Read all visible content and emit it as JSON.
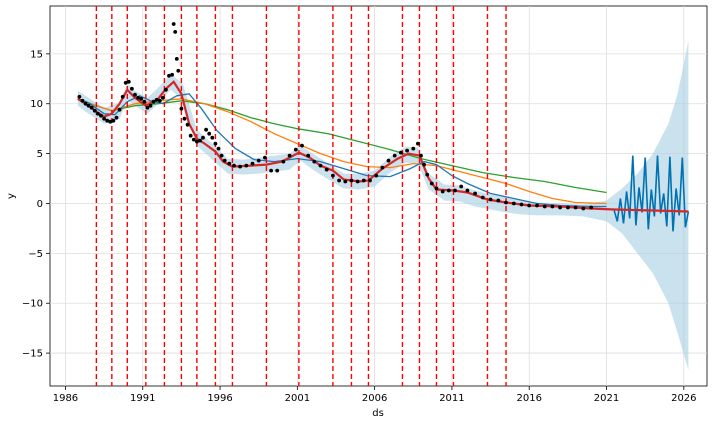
{
  "chart_data": {
    "type": "line",
    "xlabel": "ds",
    "ylabel": "y",
    "xlim": [
      1985.0,
      2027.5
    ],
    "ylim": [
      -18.3,
      19.8
    ],
    "x_ticks": [
      1986,
      1991,
      1996,
      2001,
      2006,
      2011,
      2016,
      2021,
      2026
    ],
    "x_tick_labels": [
      "1986",
      "1991",
      "1996",
      "2001",
      "2006",
      "2011",
      "2016",
      "2021",
      "2026"
    ],
    "y_ticks": [
      -15,
      -10,
      -5,
      0,
      5,
      10,
      15
    ],
    "y_tick_labels": [
      "−15",
      "−10",
      "−5",
      "0",
      "5",
      "10",
      "15"
    ],
    "grid": true,
    "colors": {
      "observed": "#000000",
      "fit": "#d62728",
      "forecast": "#0072b2",
      "uncertainty": "#a6cee3",
      "changepoint": "#ff0000",
      "blue_series": "#1f77b4",
      "orange_series": "#ff7f0e",
      "green_series": "#2ca02c"
    },
    "changepoints": [
      1988.0,
      1989.0,
      1990.0,
      1991.2,
      1992.4,
      1993.5,
      1994.5,
      1995.7,
      1996.8,
      1999.0,
      2001.1,
      2003.3,
      2004.5,
      2005.6,
      2007.8,
      2008.9,
      2010.0,
      2011.1,
      2013.3,
      2014.5
    ],
    "series": [
      {
        "name": "",
        "role": "uncertainty-upper",
        "x": [
          1986.8,
          1987.5,
          1988.5,
          1989.5,
          1990.0,
          1990.5,
          1991.3,
          1992.0,
          1992.8,
          1993.6,
          1994.5,
          1995.5,
          1996.5,
          1997.5,
          1998.5,
          1999.5,
          2000.5,
          2001.2,
          2002.0,
          2003.0,
          2004.0,
          2005.0,
          2006.0,
          2007.0,
          2008.0,
          2008.8,
          2009.5,
          2010.5,
          2011.5,
          2012.5,
          2013.5,
          2014.5,
          2015.5,
          2016.5,
          2018.0,
          2019.5,
          2021.0,
          2022.0,
          2023.0,
          2024.0,
          2025.0,
          2025.6,
          2026.3
        ],
        "values": [
          11.3,
          10.6,
          9.6,
          10.1,
          12.0,
          11.3,
          10.6,
          11.6,
          13.0,
          12.0,
          7.4,
          6.0,
          4.5,
          4.4,
          4.6,
          4.8,
          5.0,
          5.8,
          5.0,
          4.0,
          3.0,
          3.0,
          3.3,
          4.7,
          5.7,
          5.6,
          3.0,
          1.9,
          1.8,
          1.3,
          0.9,
          0.6,
          0.3,
          0.1,
          0.0,
          -0.1,
          0.3,
          1.5,
          3.0,
          5.0,
          8.0,
          11.0,
          16.3
        ]
      },
      {
        "name": "",
        "role": "uncertainty-lower",
        "x": [
          1986.8,
          1987.5,
          1988.5,
          1989.5,
          1990.0,
          1990.5,
          1991.3,
          1992.0,
          1992.8,
          1993.6,
          1994.5,
          1995.5,
          1996.5,
          1997.5,
          1998.5,
          1999.5,
          2000.5,
          2001.2,
          2002.0,
          2003.0,
          2004.0,
          2005.0,
          2006.0,
          2007.0,
          2008.0,
          2008.8,
          2009.5,
          2010.5,
          2011.5,
          2012.5,
          2013.5,
          2014.5,
          2015.5,
          2016.5,
          2018.0,
          2019.5,
          2021.0,
          2022.0,
          2023.0,
          2024.0,
          2025.0,
          2025.6,
          2026.3
        ],
        "values": [
          9.8,
          9.0,
          8.0,
          8.5,
          10.4,
          9.8,
          9.0,
          10.0,
          11.4,
          10.4,
          5.8,
          4.4,
          3.0,
          2.9,
          3.0,
          3.2,
          3.4,
          4.3,
          3.4,
          2.4,
          1.5,
          1.4,
          1.7,
          3.1,
          4.1,
          4.0,
          1.4,
          0.3,
          0.2,
          -0.3,
          -0.6,
          -0.9,
          -1.1,
          -1.2,
          -1.2,
          -1.3,
          -1.8,
          -3.0,
          -5.0,
          -7.0,
          -10.0,
          -13.0,
          -16.7
        ]
      },
      {
        "name": "",
        "role": "blue-series",
        "x": [
          1986.8,
          1987.5,
          1988.5,
          1989.2,
          1990.0,
          1990.8,
          1991.5,
          1992.3,
          1993.2,
          1994.0,
          1994.8,
          1995.8,
          1997.0,
          1998.2,
          1999.5,
          2001.0,
          2002.5,
          2004.0,
          2005.5,
          2007.0,
          2008.3,
          2009.2,
          2010.0,
          2011.0,
          2012.0,
          2013.5,
          2015.0,
          2016.5,
          2018.0,
          2020.0,
          2021.0
        ],
        "values": [
          10.5,
          10.1,
          9.0,
          8.9,
          10.2,
          10.8,
          10.3,
          10.0,
          10.8,
          11.0,
          9.5,
          7.3,
          5.5,
          4.4,
          4.2,
          4.5,
          4.2,
          3.5,
          2.8,
          2.7,
          3.5,
          4.2,
          3.9,
          2.8,
          2.0,
          1.0,
          0.5,
          0.0,
          -0.2,
          -0.3,
          -0.3
        ]
      },
      {
        "name": "",
        "role": "orange-series",
        "x": [
          1986.8,
          1988.0,
          1989.0,
          1990.5,
          1992.0,
          1993.5,
          1995.0,
          1996.5,
          1998.0,
          1999.5,
          2001.0,
          2002.5,
          2004.0,
          2005.5,
          2007.0,
          2008.5,
          2010.0,
          2011.5,
          2013.0,
          2014.5,
          2016.0,
          2017.5,
          2019.0,
          2021.0
        ],
        "values": [
          10.5,
          9.8,
          9.3,
          10.0,
          10.3,
          10.5,
          10.0,
          9.2,
          8.2,
          7.0,
          6.0,
          5.0,
          4.2,
          3.7,
          3.6,
          4.0,
          3.8,
          3.2,
          2.6,
          2.0,
          1.2,
          0.5,
          0.1,
          0.0
        ]
      },
      {
        "name": "",
        "role": "green-series",
        "x": [
          1986.8,
          1988.0,
          1989.0,
          1990.5,
          1992.0,
          1993.5,
          1995.0,
          1996.5,
          1998.0,
          1999.5,
          2001.0,
          2003.0,
          2005.0,
          2007.0,
          2009.0,
          2011.0,
          2013.0,
          2015.0,
          2017.0,
          2019.0,
          2021.0
        ],
        "values": [
          10.5,
          9.8,
          9.3,
          9.8,
          10.0,
          10.3,
          10.0,
          9.4,
          8.6,
          8.0,
          7.5,
          7.0,
          6.2,
          5.4,
          4.5,
          3.8,
          3.1,
          2.6,
          2.2,
          1.6,
          1.1
        ]
      },
      {
        "name": "",
        "role": "forecast",
        "x": [
          2021.5,
          2021.7,
          2021.9,
          2022.1,
          2022.3,
          2022.5,
          2022.7,
          2022.9,
          2023.1,
          2023.3,
          2023.5,
          2023.7,
          2023.9,
          2024.1,
          2024.3,
          2024.5,
          2024.7,
          2024.9,
          2025.1,
          2025.3,
          2025.5,
          2025.7,
          2025.9,
          2026.1,
          2026.3
        ],
        "values": [
          -0.7,
          -1.8,
          0.5,
          -2.0,
          1.2,
          -1.5,
          4.8,
          -2.2,
          1.6,
          -0.9,
          4.6,
          -2.6,
          1.4,
          -1.3,
          4.8,
          -1.0,
          1.0,
          -2.3,
          4.7,
          -2.8,
          1.5,
          -1.2,
          4.6,
          -2.4,
          -0.8
        ]
      },
      {
        "name": "",
        "role": "fit",
        "x": [
          1986.8,
          1987.5,
          1988.0,
          1988.5,
          1989.0,
          1989.5,
          1990.0,
          1990.5,
          1991.2,
          1992.0,
          1992.5,
          1993.0,
          1993.5,
          1994.0,
          1994.5,
          1995.0,
          1995.7,
          1996.2,
          1996.8,
          1998.0,
          1999.0,
          2000.0,
          2001.1,
          2001.8,
          2002.5,
          2003.3,
          2004.0,
          2005.0,
          2005.6,
          2006.5,
          2007.5,
          2008.2,
          2008.9,
          2009.5,
          2010.0,
          2011.1,
          2012.0,
          2013.3,
          2014.5,
          2016.0,
          2018.0,
          2020.0,
          2021.5,
          2024.0,
          2026.3
        ],
        "values": [
          10.5,
          9.8,
          9.2,
          8.7,
          9.0,
          10.0,
          11.4,
          10.6,
          9.8,
          10.5,
          11.5,
          12.2,
          11.0,
          8.0,
          6.5,
          6.0,
          5.2,
          4.2,
          3.7,
          3.8,
          3.9,
          4.2,
          5.1,
          4.6,
          3.8,
          3.3,
          2.4,
          2.2,
          2.3,
          3.5,
          4.5,
          5.0,
          4.8,
          2.5,
          1.4,
          1.3,
          1.1,
          0.4,
          0.1,
          -0.2,
          -0.3,
          -0.5,
          -0.6,
          -0.7,
          -0.8
        ]
      },
      {
        "name": "",
        "role": "observed",
        "x": [
          1986.9,
          1987.1,
          1987.3,
          1987.5,
          1987.7,
          1987.9,
          1988.1,
          1988.3,
          1988.5,
          1988.7,
          1988.9,
          1989.1,
          1989.3,
          1989.5,
          1989.7,
          1989.9,
          1990.1,
          1990.3,
          1990.5,
          1990.7,
          1990.9,
          1991.1,
          1991.3,
          1991.5,
          1991.7,
          1991.9,
          1992.1,
          1992.3,
          1992.5,
          1992.7,
          1992.9,
          1993.0,
          1993.1,
          1993.2,
          1993.3,
          1993.5,
          1993.7,
          1993.9,
          1994.1,
          1994.3,
          1994.5,
          1994.7,
          1994.9,
          1995.1,
          1995.3,
          1995.5,
          1995.7,
          1995.9,
          1996.1,
          1996.3,
          1996.6,
          1996.9,
          1997.3,
          1997.7,
          1998.1,
          1998.5,
          1998.9,
          1999.3,
          1999.7,
          2000.1,
          2000.5,
          2000.9,
          2001.3,
          2001.7,
          2002.1,
          2002.5,
          2002.9,
          2003.3,
          2003.7,
          2004.1,
          2004.5,
          2004.9,
          2005.3,
          2005.7,
          2006.1,
          2006.5,
          2006.9,
          2007.3,
          2007.7,
          2008.1,
          2008.5,
          2008.8,
          2009.0,
          2009.2,
          2009.4,
          2009.7,
          2010.0,
          2010.4,
          2010.8,
          2011.2,
          2011.6,
          2012.0,
          2012.5,
          2013.0,
          2013.5,
          2014.0,
          2014.5,
          2015.0,
          2015.5,
          2016.0,
          2016.5,
          2017.0,
          2017.5,
          2018.0,
          2018.5,
          2019.0,
          2019.5,
          2020.0
        ],
        "values": [
          10.7,
          10.3,
          10.0,
          9.8,
          9.6,
          9.3,
          9.0,
          8.8,
          8.5,
          8.3,
          8.2,
          8.3,
          8.6,
          9.4,
          10.7,
          12.1,
          12.2,
          11.5,
          10.9,
          10.6,
          10.5,
          10.2,
          9.6,
          9.8,
          10.2,
          10.4,
          10.3,
          10.6,
          11.4,
          12.8,
          12.9,
          18.0,
          17.2,
          14.5,
          13.3,
          9.5,
          8.5,
          7.9,
          6.8,
          6.4,
          6.2,
          6.3,
          6.6,
          7.4,
          7.0,
          6.6,
          6.0,
          5.5,
          4.8,
          4.3,
          4.0,
          3.8,
          3.7,
          3.8,
          4.0,
          4.3,
          4.6,
          3.3,
          3.3,
          4.2,
          4.8,
          5.4,
          5.8,
          4.8,
          4.2,
          3.8,
          3.4,
          2.8,
          2.3,
          2.2,
          2.3,
          2.2,
          2.3,
          2.3,
          2.8,
          3.6,
          4.3,
          4.8,
          5.1,
          5.3,
          5.5,
          6.0,
          4.8,
          3.9,
          2.9,
          2.0,
          1.5,
          1.2,
          1.3,
          1.3,
          1.7,
          1.3,
          1.0,
          0.6,
          0.4,
          0.3,
          0.1,
          0.0,
          -0.1,
          -0.2,
          -0.2,
          -0.3,
          -0.3,
          -0.4,
          -0.4,
          -0.4,
          -0.5,
          -0.4
        ]
      }
    ]
  }
}
